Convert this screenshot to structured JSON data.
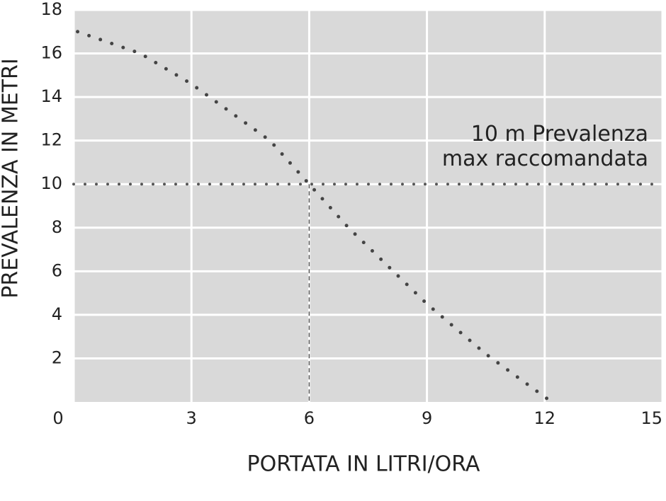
{
  "chart_data": {
    "type": "line",
    "x_label": "PORTATA IN LITRI/ORA",
    "y_label": "PREVALENZA IN METRI",
    "annotation": [
      "10 m Prevalenza",
      "max raccomandata"
    ],
    "reference_y": 10,
    "reference_x": 6,
    "x": [
      0.1,
      1.7,
      3,
      5,
      6,
      7,
      9,
      10.5,
      12.1
    ],
    "series": [
      {
        "color": "#444444",
        "values": [
          17,
          16,
          14.6,
          12,
          10,
          8,
          4.5,
          2.2,
          0.1
        ]
      }
    ],
    "xlim": [
      0,
      15
    ],
    "xticks": [
      0,
      3,
      6,
      9,
      12,
      15
    ],
    "ylim": [
      0,
      18
    ],
    "yticks": [
      2,
      4,
      6,
      8,
      10,
      12,
      14,
      16,
      18
    ],
    "grid": true,
    "background": "#d9d9d9"
  }
}
